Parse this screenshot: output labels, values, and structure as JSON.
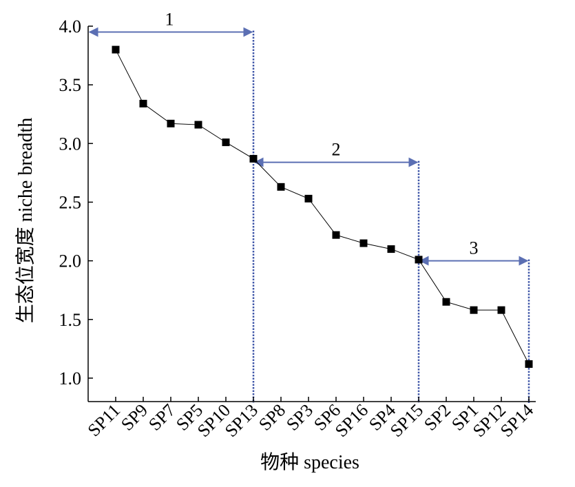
{
  "chart_data": {
    "type": "line",
    "xlabel": "物种 species",
    "ylabel": "生态位宽度 niche breadth",
    "ylim": [
      0.8,
      4.0
    ],
    "yticks": [
      1.0,
      1.5,
      2.0,
      2.5,
      3.0,
      3.5,
      4.0
    ],
    "ytick_labels": [
      "1.0",
      "1.5",
      "2.0",
      "2.5",
      "3.0",
      "3.5",
      "4.0"
    ],
    "categories": [
      "SP11",
      "SP9",
      "SP7",
      "SP5",
      "SP10",
      "SP13",
      "SP8",
      "SP3",
      "SP6",
      "SP16",
      "SP4",
      "SP15",
      "SP2",
      "SP1",
      "SP12",
      "SP14"
    ],
    "series": [
      {
        "values": [
          3.8,
          3.34,
          3.17,
          3.16,
          3.01,
          2.87,
          2.63,
          2.53,
          2.22,
          2.15,
          2.1,
          2.01,
          1.65,
          1.58,
          1.58,
          1.12
        ]
      }
    ],
    "grid": false,
    "colors": {
      "line": "#000000",
      "marker": "#000000",
      "group_arrow": "#5b6fb3",
      "divider": "#3f56a8"
    },
    "groups": [
      {
        "label": "1",
        "start": "SP11",
        "end": "SP13",
        "value": 3.95
      },
      {
        "label": "2",
        "start": "SP13",
        "end": "SP15",
        "value": 2.84
      },
      {
        "label": "3",
        "start": "SP15",
        "end": "SP14",
        "value": 2.0
      }
    ],
    "dividers": [
      "SP13",
      "SP15",
      "SP14"
    ]
  }
}
